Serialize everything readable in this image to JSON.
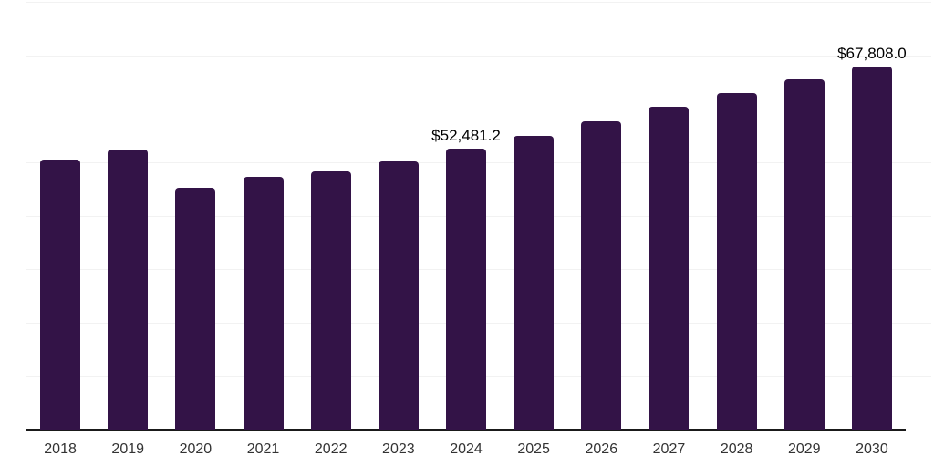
{
  "chart_data": {
    "type": "bar",
    "title": "",
    "xlabel": "",
    "ylabel": "",
    "categories": [
      "2018",
      "2019",
      "2020",
      "2021",
      "2022",
      "2023",
      "2024",
      "2025",
      "2026",
      "2027",
      "2028",
      "2029",
      "2030"
    ],
    "values": [
      50500,
      52300,
      45200,
      47300,
      48200,
      50200,
      52481.2,
      55000,
      57700,
      60350,
      62900,
      65450,
      67808.0
    ],
    "data_labels": [
      {
        "category": "2024",
        "text": "$52,481.2"
      },
      {
        "category": "2030",
        "text": "$67,808.0"
      }
    ],
    "ylim": [
      0,
      80000
    ],
    "grid_interval": 10000,
    "grid": "on",
    "legend": "none",
    "y_tick_labels_visible": false,
    "colors": {
      "bar": "#331347",
      "axis_line": "#1a1a1a",
      "gridline": "#f2f2f2",
      "x_tick_label": "#333333",
      "data_label": "#000000",
      "background": "#ffffff"
    }
  }
}
